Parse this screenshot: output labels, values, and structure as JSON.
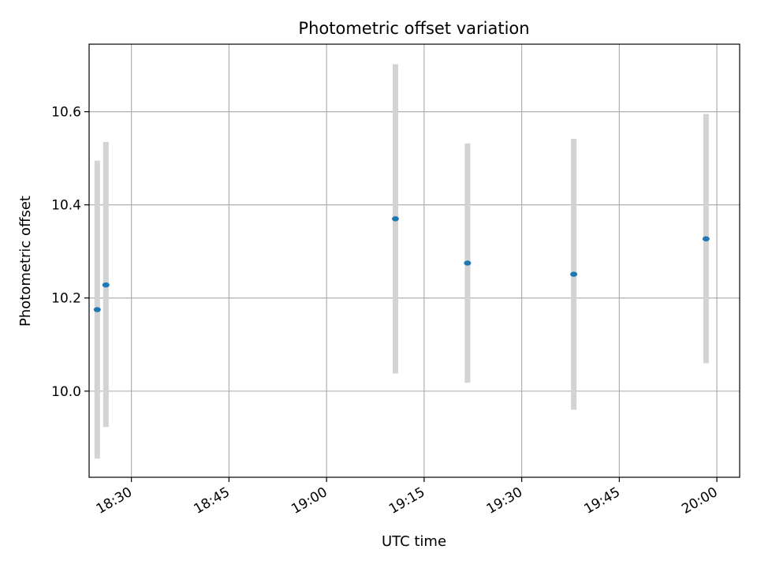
{
  "chart_data": {
    "type": "scatter",
    "title": "Photometric offset variation",
    "xlabel": "UTC time",
    "ylabel": "Photometric offset",
    "x_unit": "HH:MM",
    "xlim": [
      "18:23:30",
      "20:03:30"
    ],
    "ylim": [
      9.815,
      10.745
    ],
    "grid": true,
    "x_ticks": [
      "18:30",
      "18:45",
      "19:00",
      "19:15",
      "19:30",
      "19:45",
      "20:00"
    ],
    "y_ticks": [
      "10.0",
      "10.2",
      "10.4",
      "10.6"
    ],
    "points": [
      {
        "time": "18:24:45",
        "value": 10.175,
        "err_low": 9.855,
        "err_high": 10.495
      },
      {
        "time": "18:26:05",
        "value": 10.228,
        "err_low": 9.923,
        "err_high": 10.535
      },
      {
        "time": "19:10:35",
        "value": 10.37,
        "err_low": 10.038,
        "err_high": 10.702
      },
      {
        "time": "19:21:40",
        "value": 10.275,
        "err_low": 10.018,
        "err_high": 10.532
      },
      {
        "time": "19:38:00",
        "value": 10.251,
        "err_low": 9.96,
        "err_high": 10.542
      },
      {
        "time": "19:58:20",
        "value": 10.327,
        "err_low": 10.06,
        "err_high": 10.595
      }
    ],
    "colors": {
      "marker": "#1f77b4",
      "errorbar": "#d3d3d3",
      "grid": "#b0b0b0",
      "axes": "#000000"
    }
  }
}
